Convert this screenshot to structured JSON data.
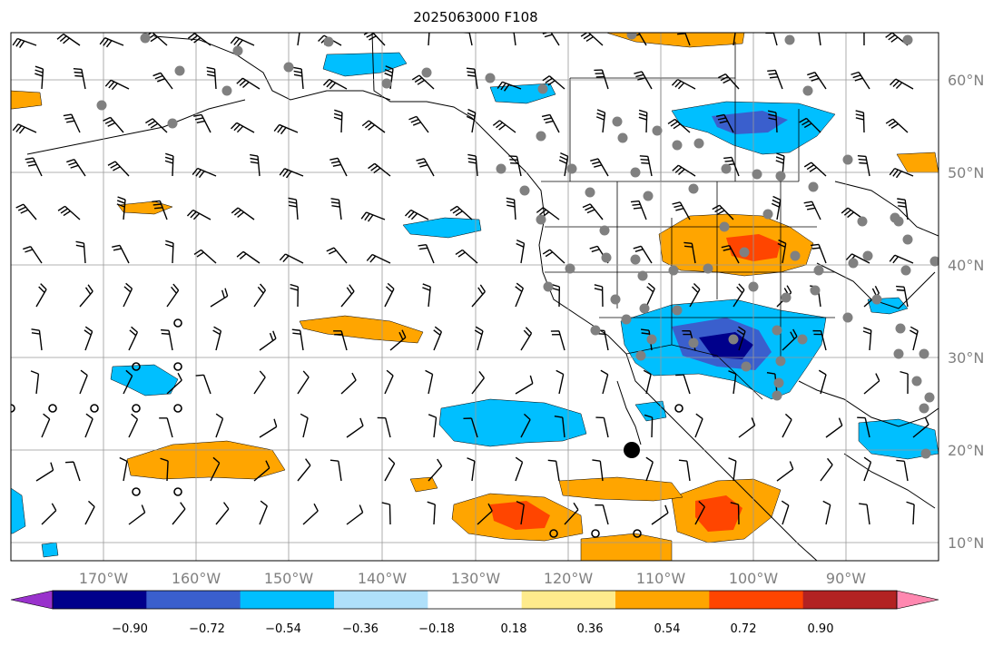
{
  "title": "2025063000 F108",
  "map": {
    "lon_labels": [
      "170°W",
      "160°W",
      "150°W",
      "140°W",
      "130°W",
      "120°W",
      "110°W",
      "100°W",
      "90°W"
    ],
    "lat_labels": [
      "60°N",
      "50°N",
      "40°N",
      "30°N",
      "20°N",
      "10°N"
    ],
    "lon_values": [
      -170,
      -160,
      -150,
      -140,
      -130,
      -120,
      -110,
      -100,
      -90
    ],
    "lat_values": [
      60,
      50,
      40,
      30,
      20,
      10
    ]
  },
  "colorbar": {
    "tick_labels": [
      "−0.90",
      "−0.72",
      "−0.54",
      "−0.36",
      "−0.18",
      "0.18",
      "0.36",
      "0.54",
      "0.72",
      "0.90"
    ],
    "colors": [
      "#9932cc",
      "#00008b",
      "#3a5fcd",
      "#00bfff",
      "#afe0fa",
      "#ffffff",
      "#ffeb8c",
      "#ffa500",
      "#ff4500",
      "#b22222",
      "#ff88b0"
    ]
  }
}
